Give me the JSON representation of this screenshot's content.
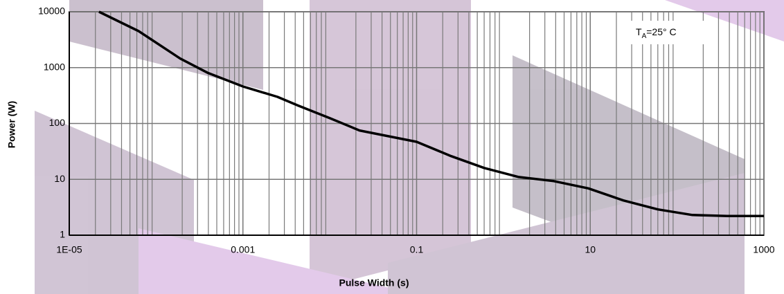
{
  "chart_data": {
    "type": "line",
    "xlabel": "Pulse Width (s)",
    "ylabel": "Power (W)",
    "annotation": {
      "main": "T",
      "sub": "A",
      "rest": "=25° C"
    },
    "log_x": true,
    "log_y": true,
    "grid": true,
    "minor_grid": true,
    "xlim": [
      1e-05,
      1000
    ],
    "xticks": [
      {
        "value": 1e-05,
        "label": "1E-05"
      },
      0.001,
      0.1,
      10,
      1000
    ],
    "ylim": [
      1,
      10000
    ],
    "yticks": [
      1,
      10,
      100,
      1000,
      10000
    ],
    "x": [
      2.2e-05,
      6.3e-05,
      0.00019,
      0.00039,
      0.001,
      0.0025,
      0.0043,
      0.01,
      0.022,
      0.1,
      0.25,
      0.6,
      1.5,
      3.8,
      9.5,
      24,
      60,
      150,
      380,
      1000
    ],
    "series": [
      {
        "color": "#000000",
        "values": [
          10000,
          4500,
          1450,
          810,
          460,
          300,
          210,
          125,
          75,
          47,
          26,
          16,
          11,
          9.3,
          6.9,
          4.2,
          2.9,
          2.3,
          2.2,
          2.2
        ]
      }
    ]
  }
}
